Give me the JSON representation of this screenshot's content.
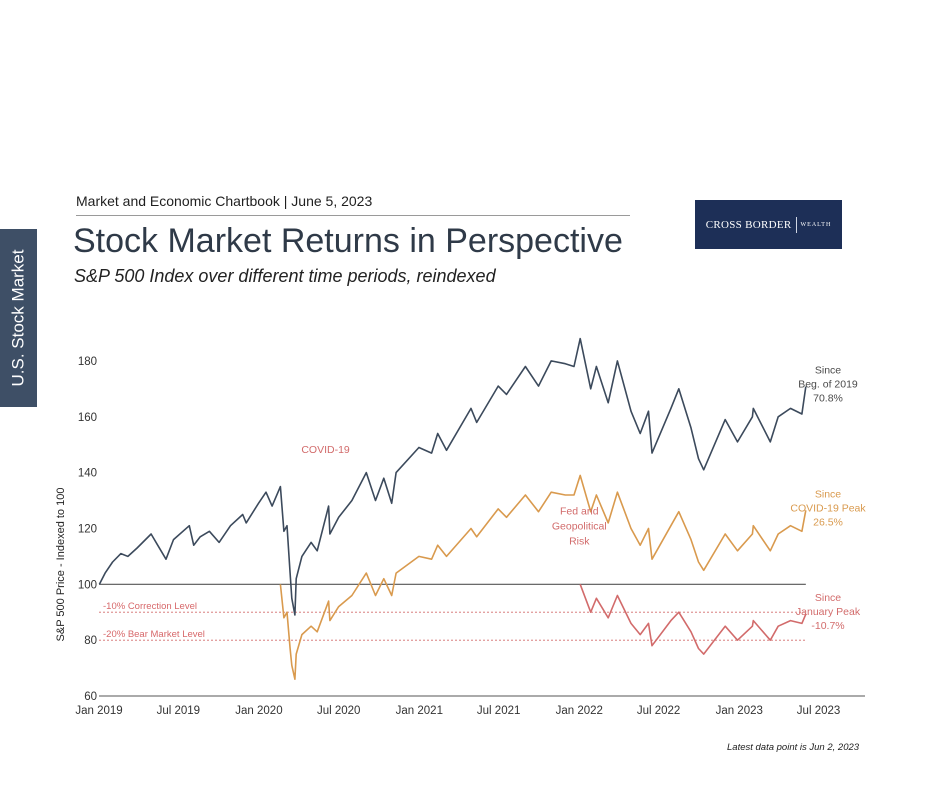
{
  "side_tab": "U.S. Stock Market",
  "header": "Market and Economic Chartbook | June 5, 2023",
  "title": "Stock Market Returns in Perspective",
  "subtitle": "S&P 500 Index over different time periods, reindexed",
  "logo": {
    "name": "CROSS BORDER",
    "sub": "WEALTH"
  },
  "footnote": "Latest data point is Jun 2, 2023",
  "colors": {
    "navy": "#3c4a5c",
    "orange": "#d99a4e",
    "red": "#d26b6b",
    "baseline": "#555555"
  },
  "chart_data": {
    "type": "line",
    "title": "Stock Market Returns in Perspective",
    "ylabel": "S&P 500 Price - Indexed to 100",
    "xlabel": "",
    "ylim": [
      60,
      190
    ],
    "yticks": [
      60,
      80,
      100,
      120,
      140,
      160,
      180
    ],
    "xlim": [
      "2019-01-01",
      "2023-10-15"
    ],
    "xticks": [
      {
        "date": "2019-01-01",
        "label": "Jan 2019"
      },
      {
        "date": "2019-07-01",
        "label": "Jul 2019"
      },
      {
        "date": "2020-01-01",
        "label": "Jan 2020"
      },
      {
        "date": "2020-07-01",
        "label": "Jul 2020"
      },
      {
        "date": "2021-01-01",
        "label": "Jan 2021"
      },
      {
        "date": "2021-07-01",
        "label": "Jul 2021"
      },
      {
        "date": "2022-01-01",
        "label": "Jan 2022"
      },
      {
        "date": "2022-07-01",
        "label": "Jul 2022"
      },
      {
        "date": "2023-01-01",
        "label": "Jan 2023"
      },
      {
        "date": "2023-07-01",
        "label": "Jul 2023"
      }
    ],
    "reference_lines": [
      {
        "y": 100,
        "label": ""
      },
      {
        "y": 90,
        "label": "-10% Correction Level"
      },
      {
        "y": 80,
        "label": "-20% Bear Market Level"
      }
    ],
    "annotations": [
      {
        "text": "COVID-19",
        "date": "2020-06-01",
        "y": 147
      },
      {
        "text": "Fed and\nGeopolitical\nRisk",
        "date": "2022-01-01",
        "y": 125
      }
    ],
    "series": [
      {
        "name": "Since Beg. of 2019",
        "end_label": "Since\nBeg. of 2019\n70.8%",
        "values": [
          [
            "2019-01-02",
            100
          ],
          [
            "2019-01-15",
            104
          ],
          [
            "2019-02-01",
            108
          ],
          [
            "2019-02-20",
            111
          ],
          [
            "2019-03-08",
            110
          ],
          [
            "2019-03-29",
            113
          ],
          [
            "2019-04-30",
            118
          ],
          [
            "2019-05-15",
            114
          ],
          [
            "2019-06-03",
            109
          ],
          [
            "2019-06-20",
            116
          ],
          [
            "2019-07-26",
            121
          ],
          [
            "2019-08-05",
            114
          ],
          [
            "2019-08-20",
            117
          ],
          [
            "2019-09-10",
            119
          ],
          [
            "2019-10-02",
            115
          ],
          [
            "2019-10-28",
            121
          ],
          [
            "2019-11-25",
            125
          ],
          [
            "2019-12-03",
            122
          ],
          [
            "2019-12-31",
            129
          ],
          [
            "2020-01-17",
            133
          ],
          [
            "2020-01-31",
            128
          ],
          [
            "2020-02-19",
            135
          ],
          [
            "2020-02-27",
            119
          ],
          [
            "2020-03-05",
            121
          ],
          [
            "2020-03-12",
            104
          ],
          [
            "2020-03-16",
            95
          ],
          [
            "2020-03-23",
            89
          ],
          [
            "2020-03-26",
            102
          ],
          [
            "2020-04-08",
            110
          ],
          [
            "2020-04-29",
            115
          ],
          [
            "2020-05-13",
            112
          ],
          [
            "2020-06-08",
            128
          ],
          [
            "2020-06-11",
            118
          ],
          [
            "2020-07-01",
            124
          ],
          [
            "2020-07-31",
            130
          ],
          [
            "2020-09-02",
            140
          ],
          [
            "2020-09-23",
            130
          ],
          [
            "2020-10-12",
            138
          ],
          [
            "2020-10-30",
            129
          ],
          [
            "2020-11-09",
            140
          ],
          [
            "2020-12-31",
            149
          ],
          [
            "2021-01-29",
            147
          ],
          [
            "2021-02-12",
            154
          ],
          [
            "2021-03-04",
            148
          ],
          [
            "2021-04-29",
            163
          ],
          [
            "2021-05-12",
            158
          ],
          [
            "2021-06-30",
            171
          ],
          [
            "2021-07-19",
            168
          ],
          [
            "2021-08-31",
            178
          ],
          [
            "2021-09-30",
            171
          ],
          [
            "2021-10-29",
            180
          ],
          [
            "2021-11-30",
            179
          ],
          [
            "2021-12-20",
            178
          ],
          [
            "2022-01-03",
            188
          ],
          [
            "2022-01-27",
            170
          ],
          [
            "2022-02-09",
            178
          ],
          [
            "2022-03-08",
            165
          ],
          [
            "2022-03-29",
            180
          ],
          [
            "2022-04-29",
            162
          ],
          [
            "2022-05-20",
            154
          ],
          [
            "2022-06-08",
            162
          ],
          [
            "2022-06-16",
            147
          ],
          [
            "2022-07-29",
            163
          ],
          [
            "2022-08-16",
            170
          ],
          [
            "2022-09-13",
            156
          ],
          [
            "2022-09-30",
            145
          ],
          [
            "2022-10-12",
            141
          ],
          [
            "2022-11-30",
            159
          ],
          [
            "2022-12-28",
            151
          ],
          [
            "2023-01-31",
            160
          ],
          [
            "2023-02-02",
            163
          ],
          [
            "2023-03-13",
            151
          ],
          [
            "2023-03-31",
            160
          ],
          [
            "2023-04-28",
            163
          ],
          [
            "2023-05-24",
            161
          ],
          [
            "2023-06-02",
            170.8
          ]
        ]
      },
      {
        "name": "Since COVID-19 Peak",
        "end_label": "Since\nCOVID-19 Peak\n26.5%",
        "values": [
          [
            "2020-02-19",
            100
          ],
          [
            "2020-02-27",
            88
          ],
          [
            "2020-03-05",
            90
          ],
          [
            "2020-03-12",
            77
          ],
          [
            "2020-03-16",
            71
          ],
          [
            "2020-03-23",
            66
          ],
          [
            "2020-03-26",
            75
          ],
          [
            "2020-04-08",
            82
          ],
          [
            "2020-04-29",
            85
          ],
          [
            "2020-05-13",
            83
          ],
          [
            "2020-06-08",
            94
          ],
          [
            "2020-06-11",
            87
          ],
          [
            "2020-07-01",
            92
          ],
          [
            "2020-07-31",
            96
          ],
          [
            "2020-09-02",
            104
          ],
          [
            "2020-09-23",
            96
          ],
          [
            "2020-10-12",
            102
          ],
          [
            "2020-10-30",
            96
          ],
          [
            "2020-11-09",
            104
          ],
          [
            "2020-12-31",
            110
          ],
          [
            "2021-01-29",
            109
          ],
          [
            "2021-02-12",
            114
          ],
          [
            "2021-03-04",
            110
          ],
          [
            "2021-04-29",
            120
          ],
          [
            "2021-05-12",
            117
          ],
          [
            "2021-06-30",
            127
          ],
          [
            "2021-07-19",
            124
          ],
          [
            "2021-08-31",
            132
          ],
          [
            "2021-09-30",
            126
          ],
          [
            "2021-10-29",
            133
          ],
          [
            "2021-11-30",
            132
          ],
          [
            "2021-12-20",
            132
          ],
          [
            "2022-01-03",
            139
          ],
          [
            "2022-01-27",
            126
          ],
          [
            "2022-02-09",
            132
          ],
          [
            "2022-03-08",
            122
          ],
          [
            "2022-03-29",
            133
          ],
          [
            "2022-04-29",
            120
          ],
          [
            "2022-05-20",
            114
          ],
          [
            "2022-06-08",
            120
          ],
          [
            "2022-06-16",
            109
          ],
          [
            "2022-07-29",
            121
          ],
          [
            "2022-08-16",
            126
          ],
          [
            "2022-09-13",
            116
          ],
          [
            "2022-09-30",
            108
          ],
          [
            "2022-10-12",
            105
          ],
          [
            "2022-11-30",
            118
          ],
          [
            "2022-12-28",
            112
          ],
          [
            "2023-01-31",
            118
          ],
          [
            "2023-02-02",
            121
          ],
          [
            "2023-03-13",
            112
          ],
          [
            "2023-03-31",
            118
          ],
          [
            "2023-04-28",
            121
          ],
          [
            "2023-05-24",
            119
          ],
          [
            "2023-06-02",
            126.5
          ]
        ]
      },
      {
        "name": "Since January Peak",
        "end_label": "Since\nJanuary Peak\n-10.7%",
        "values": [
          [
            "2022-01-03",
            100
          ],
          [
            "2022-01-27",
            90
          ],
          [
            "2022-02-09",
            95
          ],
          [
            "2022-03-08",
            88
          ],
          [
            "2022-03-29",
            96
          ],
          [
            "2022-04-29",
            86
          ],
          [
            "2022-05-20",
            82
          ],
          [
            "2022-06-08",
            86
          ],
          [
            "2022-06-16",
            78
          ],
          [
            "2022-07-29",
            87
          ],
          [
            "2022-08-16",
            90
          ],
          [
            "2022-09-13",
            83
          ],
          [
            "2022-09-30",
            77
          ],
          [
            "2022-10-12",
            75
          ],
          [
            "2022-11-30",
            85
          ],
          [
            "2022-12-28",
            80
          ],
          [
            "2023-01-31",
            85
          ],
          [
            "2023-02-02",
            87
          ],
          [
            "2023-03-13",
            80
          ],
          [
            "2023-03-31",
            85
          ],
          [
            "2023-04-28",
            87
          ],
          [
            "2023-05-24",
            86
          ],
          [
            "2023-06-02",
            89.3
          ]
        ]
      }
    ]
  }
}
